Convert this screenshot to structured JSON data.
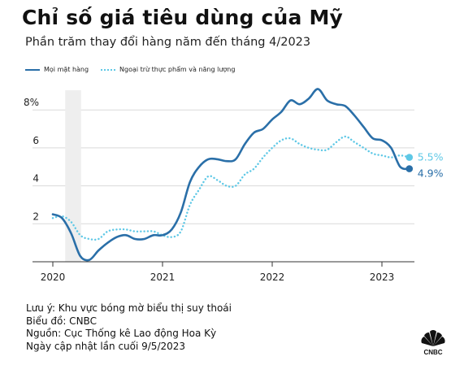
{
  "header": {
    "title": "Chỉ số giá tiêu dùng của Mỹ",
    "subtitle": "Phần trăm thay đổi hàng năm đến tháng 4/2023"
  },
  "legend": {
    "series_all": "Mọi mặt hàng",
    "series_core": "Ngoại trừ thực phẩm và năng lượng"
  },
  "notes": [
    "Lưu ý: Khu vực bóng mờ biểu thị suy thoái",
    "Biểu đồ: CNBC",
    "Nguồn: Cục Thống kê Lao động Hoa Kỳ",
    "Ngày cập nhật lần cuối 9/5/2023"
  ],
  "logo": {
    "name": "cnbc-peacock-logo",
    "text": "CNBC"
  },
  "chart_data": {
    "type": "line",
    "x_unit": "month",
    "xlim": [
      "2020-01",
      "2023-04"
    ],
    "ylim": [
      0,
      9.5
    ],
    "x_ticks": [
      "2020",
      "2021",
      "2022",
      "2023"
    ],
    "y_ticks": [
      {
        "value": 2,
        "label": "2"
      },
      {
        "value": 4,
        "label": "4"
      },
      {
        "value": 6,
        "label": "6"
      },
      {
        "value": 8,
        "label": "8%"
      }
    ],
    "grid": "horizontal",
    "legend_position": "top-left",
    "recession": {
      "start": "2020-02",
      "end": "2020-04"
    },
    "x": [
      "2020-01",
      "2020-02",
      "2020-03",
      "2020-04",
      "2020-05",
      "2020-06",
      "2020-07",
      "2020-08",
      "2020-09",
      "2020-10",
      "2020-11",
      "2020-12",
      "2021-01",
      "2021-02",
      "2021-03",
      "2021-04",
      "2021-05",
      "2021-06",
      "2021-07",
      "2021-08",
      "2021-09",
      "2021-10",
      "2021-11",
      "2021-12",
      "2022-01",
      "2022-02",
      "2022-03",
      "2022-04",
      "2022-05",
      "2022-06",
      "2022-07",
      "2022-08",
      "2022-09",
      "2022-10",
      "2022-11",
      "2022-12",
      "2023-01",
      "2023-02",
      "2023-03",
      "2023-04"
    ],
    "series": [
      {
        "name": "Mọi mặt hàng",
        "color": "#2a6fa8",
        "style": "solid",
        "end_label": "4.9%",
        "values": [
          2.5,
          2.3,
          1.5,
          0.3,
          0.1,
          0.6,
          1.0,
          1.3,
          1.4,
          1.2,
          1.2,
          1.4,
          1.4,
          1.7,
          2.6,
          4.2,
          5.0,
          5.4,
          5.4,
          5.3,
          5.4,
          6.2,
          6.8,
          7.0,
          7.5,
          7.9,
          8.5,
          8.3,
          8.6,
          9.1,
          8.5,
          8.3,
          8.2,
          7.7,
          7.1,
          6.5,
          6.4,
          6.0,
          5.0,
          4.9
        ]
      },
      {
        "name": "Ngoại trừ thực phẩm và năng lượng",
        "color": "#5ec8e6",
        "style": "dotted",
        "end_label": "5.5%",
        "values": [
          2.3,
          2.4,
          2.1,
          1.4,
          1.2,
          1.2,
          1.6,
          1.7,
          1.7,
          1.6,
          1.6,
          1.6,
          1.4,
          1.3,
          1.6,
          3.0,
          3.8,
          4.5,
          4.3,
          4.0,
          4.0,
          4.6,
          4.9,
          5.5,
          6.0,
          6.4,
          6.5,
          6.2,
          6.0,
          5.9,
          5.9,
          6.3,
          6.6,
          6.3,
          6.0,
          5.7,
          5.6,
          5.5,
          5.6,
          5.5
        ]
      }
    ]
  }
}
